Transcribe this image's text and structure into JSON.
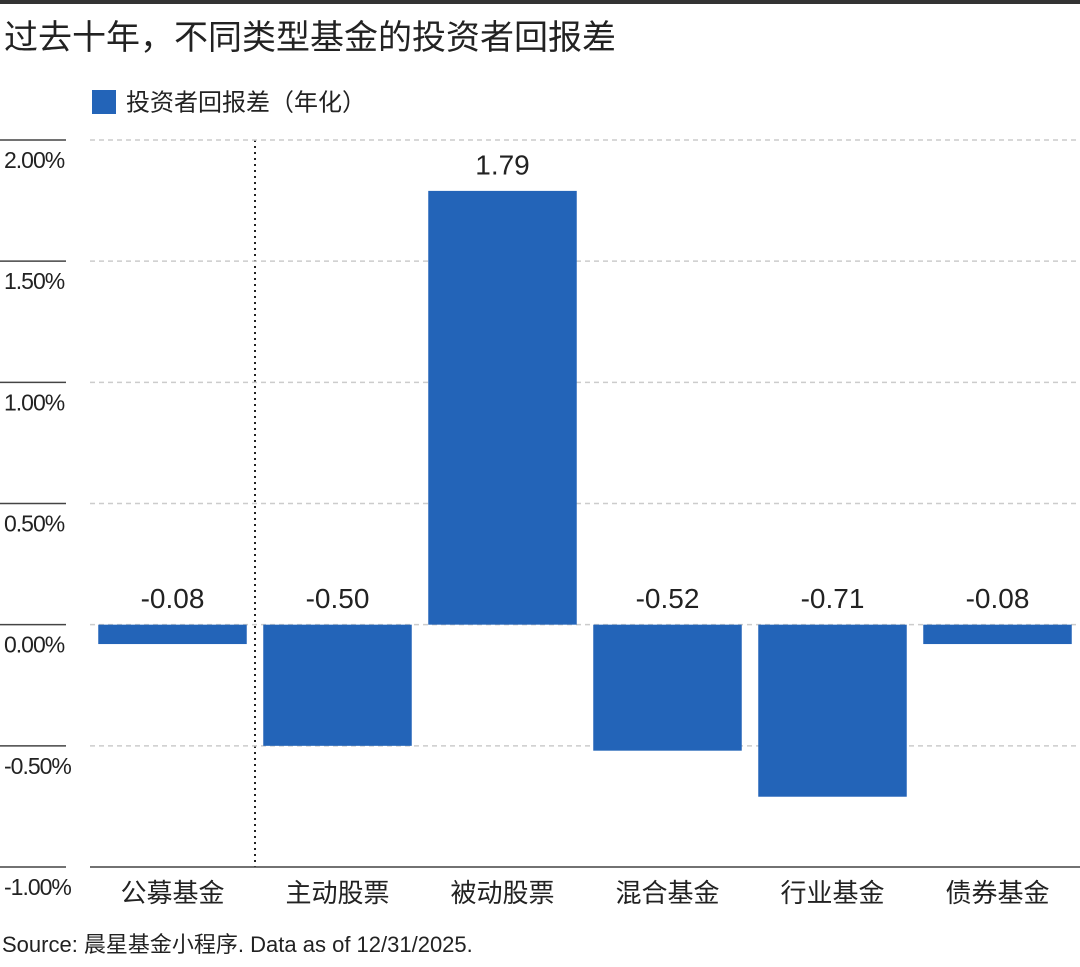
{
  "chart_data": {
    "type": "bar",
    "title": "过去十年，不同类型基金的投资者回报差",
    "source": "Source: 晨星基金小程序. Data as of 12/31/2025.",
    "categories": [
      "公募基金",
      "主动股票",
      "被动股票",
      "混合基金",
      "行业基金",
      "债券基金"
    ],
    "series": [
      {
        "name": "投资者回报差（年化）",
        "color": "#2364b8",
        "values": [
          -0.08,
          -0.5,
          1.79,
          -0.52,
          -0.71,
          -0.08
        ],
        "value_labels": [
          "-0.08",
          "-0.50",
          "1.79",
          "-0.52",
          "-0.71",
          "-0.08"
        ]
      }
    ],
    "ylim": [
      -1,
      2
    ],
    "yticks": [
      {
        "value": -1,
        "label": "-1.00%"
      },
      {
        "value": -0.5,
        "label": "-0.50%"
      },
      {
        "value": 0,
        "label": "0.00%"
      },
      {
        "value": 0.5,
        "label": "0.50%"
      },
      {
        "value": 1,
        "label": "1.00%"
      },
      {
        "value": 1.5,
        "label": "1.50%"
      },
      {
        "value": 2,
        "label": "2.00%"
      }
    ],
    "grid": true
  }
}
